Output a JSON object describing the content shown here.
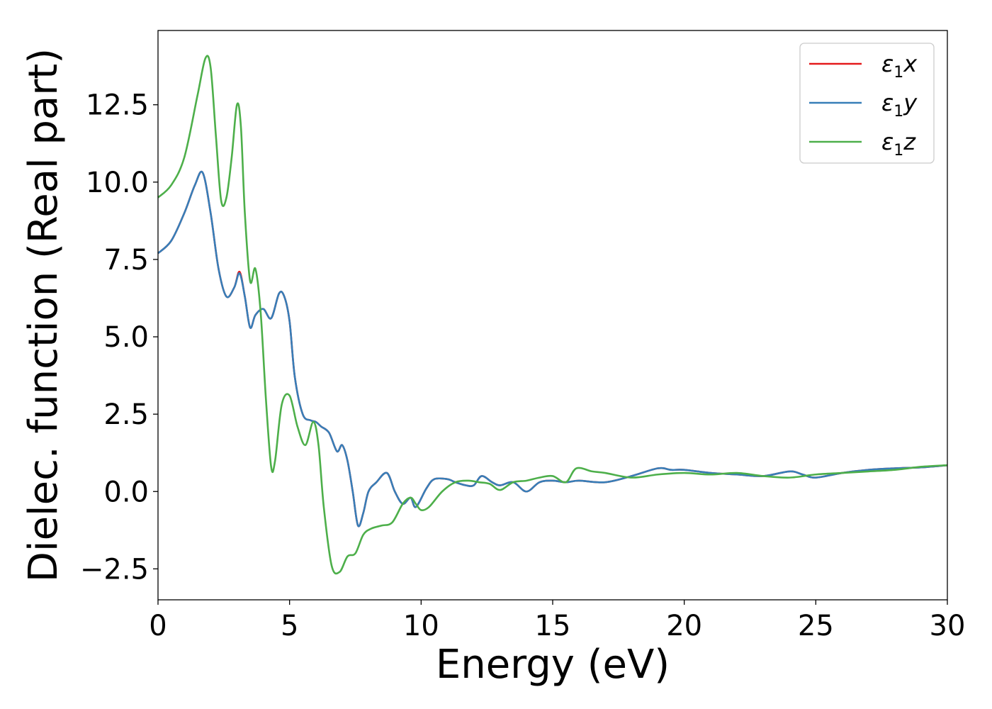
{
  "chart_data": {
    "type": "line",
    "title": "",
    "xlabel": "Energy (eV)",
    "ylabel": "Dielec. function (Real part)",
    "xlim": [
      0,
      30
    ],
    "ylim": [
      -3.5,
      14.9
    ],
    "xticks": [
      0,
      5,
      10,
      15,
      20,
      25,
      30
    ],
    "xtick_labels": [
      "0",
      "5",
      "10",
      "15",
      "20",
      "25",
      "30"
    ],
    "yticks": [
      -2.5,
      0.0,
      2.5,
      5.0,
      7.5,
      10.0,
      12.5
    ],
    "ytick_labels": [
      "−2.5",
      "0.0",
      "2.5",
      "5.0",
      "7.5",
      "10.0",
      "12.5"
    ],
    "grid": false,
    "legend_position": "top-right",
    "series": [
      {
        "name": "ε₁x",
        "legend_base": "ε",
        "legend_sub": "1",
        "legend_var": "x",
        "color": "#e41a1c",
        "x": [
          0,
          0.5,
          1.0,
          1.4,
          1.7,
          2.0,
          2.3,
          2.6,
          2.9,
          3.1,
          3.3,
          3.5,
          3.7,
          4.0,
          4.3,
          4.6,
          4.8,
          5.0,
          5.2,
          5.5,
          5.8,
          6.0,
          6.2,
          6.5,
          6.8,
          7.0,
          7.2,
          7.4,
          7.6,
          7.8,
          8.0,
          8.3,
          8.7,
          9.0,
          9.3,
          9.6,
          9.8,
          10.2,
          10.5,
          11.0,
          11.3,
          11.7,
          12.0,
          12.3,
          12.7,
          13.0,
          13.5,
          14.0,
          14.5,
          15.0,
          15.5,
          16.0,
          17.0,
          18.0,
          19.0,
          19.5,
          20.0,
          21.0,
          22.0,
          23.0,
          24.0,
          24.5,
          25.0,
          26.0,
          27.0,
          28.0,
          29.0,
          30.0
        ],
        "values": [
          7.7,
          8.1,
          9.0,
          9.9,
          10.3,
          9.0,
          7.2,
          6.3,
          6.6,
          7.1,
          6.3,
          5.3,
          5.7,
          5.9,
          5.6,
          6.4,
          6.3,
          5.5,
          3.7,
          2.5,
          2.3,
          2.25,
          2.1,
          1.9,
          1.3,
          1.5,
          1.0,
          0.0,
          -1.1,
          -0.7,
          0.0,
          0.3,
          0.6,
          0.0,
          -0.4,
          -0.2,
          -0.5,
          0.1,
          0.4,
          0.4,
          0.3,
          0.2,
          0.2,
          0.5,
          0.3,
          0.2,
          0.3,
          0.0,
          0.3,
          0.35,
          0.3,
          0.35,
          0.3,
          0.5,
          0.75,
          0.7,
          0.7,
          0.6,
          0.55,
          0.5,
          0.65,
          0.55,
          0.45,
          0.6,
          0.7,
          0.75,
          0.78,
          0.85
        ]
      },
      {
        "name": "ε₁y",
        "legend_base": "ε",
        "legend_sub": "1",
        "legend_var": "y",
        "color": "#377eb8",
        "x": [
          0,
          0.5,
          1.0,
          1.4,
          1.7,
          2.0,
          2.3,
          2.6,
          2.9,
          3.1,
          3.3,
          3.5,
          3.7,
          4.0,
          4.3,
          4.6,
          4.8,
          5.0,
          5.2,
          5.5,
          5.8,
          6.0,
          6.2,
          6.5,
          6.8,
          7.0,
          7.2,
          7.4,
          7.6,
          7.8,
          8.0,
          8.3,
          8.7,
          9.0,
          9.3,
          9.6,
          9.8,
          10.2,
          10.5,
          11.0,
          11.3,
          11.7,
          12.0,
          12.3,
          12.7,
          13.0,
          13.5,
          14.0,
          14.5,
          15.0,
          15.5,
          16.0,
          17.0,
          18.0,
          19.0,
          19.5,
          20.0,
          21.0,
          22.0,
          23.0,
          24.0,
          24.5,
          25.0,
          26.0,
          27.0,
          28.0,
          29.0,
          30.0
        ],
        "values": [
          7.7,
          8.1,
          9.0,
          9.9,
          10.3,
          9.0,
          7.2,
          6.3,
          6.6,
          7.05,
          6.3,
          5.3,
          5.7,
          5.9,
          5.6,
          6.4,
          6.3,
          5.5,
          3.7,
          2.5,
          2.3,
          2.25,
          2.1,
          1.9,
          1.3,
          1.5,
          1.0,
          0.0,
          -1.1,
          -0.7,
          0.0,
          0.3,
          0.6,
          0.0,
          -0.4,
          -0.2,
          -0.5,
          0.1,
          0.4,
          0.4,
          0.3,
          0.2,
          0.2,
          0.5,
          0.3,
          0.2,
          0.3,
          0.0,
          0.3,
          0.35,
          0.3,
          0.35,
          0.3,
          0.5,
          0.75,
          0.7,
          0.7,
          0.6,
          0.55,
          0.5,
          0.65,
          0.55,
          0.45,
          0.6,
          0.7,
          0.75,
          0.78,
          0.85
        ]
      },
      {
        "name": "ε₁z",
        "legend_base": "ε",
        "legend_sub": "1",
        "legend_var": "z",
        "color": "#4daf4a",
        "x": [
          0,
          0.5,
          1.0,
          1.5,
          1.8,
          2.0,
          2.2,
          2.4,
          2.6,
          2.8,
          3.0,
          3.15,
          3.3,
          3.5,
          3.7,
          3.9,
          4.1,
          4.3,
          4.45,
          4.7,
          5.0,
          5.3,
          5.6,
          5.9,
          6.1,
          6.3,
          6.6,
          6.9,
          7.2,
          7.5,
          7.8,
          8.1,
          8.5,
          8.9,
          9.3,
          9.6,
          9.8,
          10.0,
          10.3,
          10.8,
          11.3,
          11.8,
          12.2,
          12.6,
          13.0,
          13.5,
          14.0,
          14.5,
          15.0,
          15.5,
          15.9,
          16.5,
          17.0,
          18.0,
          19.0,
          20.0,
          21.0,
          22.0,
          23.0,
          24.0,
          25.0,
          26.0,
          27.0,
          28.0,
          29.0,
          30.0
        ],
        "values": [
          9.5,
          9.9,
          10.8,
          12.8,
          14.0,
          13.7,
          11.5,
          9.4,
          9.5,
          10.8,
          12.5,
          11.8,
          9.0,
          6.8,
          7.2,
          5.8,
          3.0,
          0.8,
          1.0,
          2.8,
          3.1,
          2.1,
          1.5,
          2.25,
          1.5,
          -0.5,
          -2.4,
          -2.6,
          -2.1,
          -2.0,
          -1.4,
          -1.2,
          -1.1,
          -1.0,
          -0.4,
          -0.2,
          -0.4,
          -0.6,
          -0.5,
          0.0,
          0.3,
          0.35,
          0.3,
          0.25,
          0.05,
          0.3,
          0.35,
          0.45,
          0.5,
          0.3,
          0.75,
          0.65,
          0.6,
          0.45,
          0.55,
          0.6,
          0.55,
          0.6,
          0.5,
          0.45,
          0.55,
          0.6,
          0.65,
          0.7,
          0.8,
          0.85
        ]
      }
    ]
  }
}
